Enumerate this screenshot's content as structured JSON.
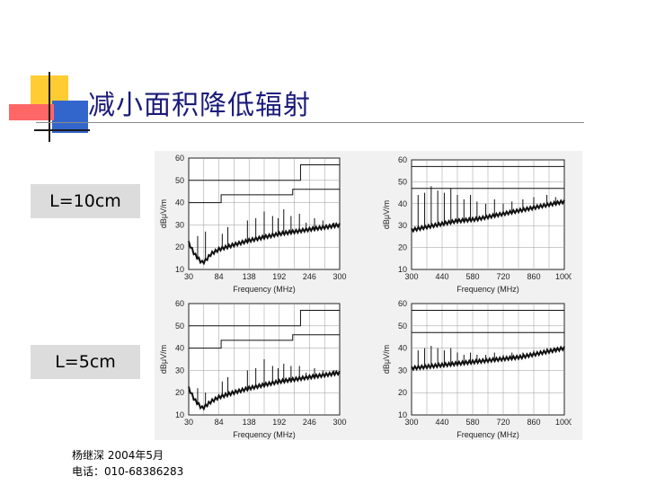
{
  "slide": {
    "title": "减小面积降低辐射",
    "labels": [
      "L=10cm",
      "L=5cm"
    ],
    "footer_line1": "杨继深  2004年5月",
    "footer_line2": "电话：010-68386283"
  },
  "colors": {
    "title": "#1a1a7a",
    "deco_yellow": "#ffcc33",
    "deco_blue": "#3366cc",
    "deco_red": "#ff6666",
    "label_bg": "#dcdcdc"
  },
  "chart_data": [
    {
      "type": "line",
      "position": "top-left",
      "xlabel": "Frequency (MHz)",
      "ylabel": "dBμV/m",
      "xticks": [
        "30",
        "84",
        "138",
        "192",
        "246",
        "300"
      ],
      "yticks": [
        "10",
        "20",
        "30",
        "40",
        "50",
        "60"
      ],
      "xlim": [
        30,
        300
      ],
      "ylim": [
        10,
        60
      ],
      "limit_lines": [
        {
          "x": [
            30,
            88,
            88,
            216,
            216,
            300
          ],
          "y": [
            40,
            40,
            43.5,
            43.5,
            46,
            46
          ]
        },
        {
          "x": [
            30,
            230,
            230,
            300
          ],
          "y": [
            50,
            50,
            57,
            57
          ]
        }
      ],
      "noise_floor": {
        "x": [
          30,
          40,
          50,
          55,
          60,
          70,
          84,
          110,
          138,
          165,
          192,
          220,
          246,
          275,
          300
        ],
        "y": [
          22,
          17,
          14,
          13,
          14,
          17,
          19,
          21,
          23,
          24.5,
          26,
          27,
          28,
          29,
          30
        ]
      },
      "spikes": [
        {
          "x": 46,
          "y": 25
        },
        {
          "x": 60,
          "y": 27
        },
        {
          "x": 90,
          "y": 26
        },
        {
          "x": 100,
          "y": 29
        },
        {
          "x": 135,
          "y": 32
        },
        {
          "x": 150,
          "y": 33
        },
        {
          "x": 165,
          "y": 36
        },
        {
          "x": 180,
          "y": 34
        },
        {
          "x": 190,
          "y": 33
        },
        {
          "x": 200,
          "y": 37
        },
        {
          "x": 213,
          "y": 34
        },
        {
          "x": 228,
          "y": 35
        },
        {
          "x": 240,
          "y": 31
        },
        {
          "x": 255,
          "y": 33
        },
        {
          "x": 270,
          "y": 32
        },
        {
          "x": 290,
          "y": 31
        }
      ]
    },
    {
      "type": "line",
      "position": "top-right",
      "xlabel": "Frequency (MHz)",
      "ylabel": "dBμV/m",
      "xticks": [
        "300",
        "440",
        "580",
        "720",
        "860",
        "1000"
      ],
      "yticks": [
        "10",
        "20",
        "30",
        "40",
        "50",
        "60"
      ],
      "xlim": [
        300,
        1000
      ],
      "ylim": [
        10,
        60
      ],
      "limit_lines": [
        {
          "x": [
            300,
            1000
          ],
          "y": [
            47,
            47
          ]
        },
        {
          "x": [
            300,
            1000
          ],
          "y": [
            57,
            57
          ]
        }
      ],
      "noise_floor": {
        "x": [
          300,
          400,
          500,
          600,
          700,
          800,
          900,
          1000
        ],
        "y": [
          28,
          30,
          32,
          33,
          35,
          37,
          39,
          41
        ]
      },
      "spikes": [
        {
          "x": 330,
          "y": 44
        },
        {
          "x": 360,
          "y": 45
        },
        {
          "x": 390,
          "y": 48
        },
        {
          "x": 420,
          "y": 46
        },
        {
          "x": 450,
          "y": 45
        },
        {
          "x": 480,
          "y": 47
        },
        {
          "x": 510,
          "y": 44
        },
        {
          "x": 540,
          "y": 42
        },
        {
          "x": 570,
          "y": 44
        },
        {
          "x": 600,
          "y": 41
        },
        {
          "x": 640,
          "y": 40
        },
        {
          "x": 680,
          "y": 42
        },
        {
          "x": 720,
          "y": 40
        },
        {
          "x": 760,
          "y": 41
        },
        {
          "x": 810,
          "y": 42
        },
        {
          "x": 860,
          "y": 43
        },
        {
          "x": 920,
          "y": 44
        },
        {
          "x": 960,
          "y": 43
        }
      ]
    },
    {
      "type": "line",
      "position": "bottom-left",
      "xlabel": "Frequency (MHz)",
      "ylabel": "dBμV/m",
      "xticks": [
        "30",
        "84",
        "138",
        "192",
        "246",
        "300"
      ],
      "yticks": [
        "10",
        "20",
        "30",
        "40",
        "50",
        "60"
      ],
      "xlim": [
        30,
        300
      ],
      "ylim": [
        10,
        60
      ],
      "limit_lines": [
        {
          "x": [
            30,
            88,
            88,
            216,
            216,
            300
          ],
          "y": [
            40,
            40,
            43.5,
            43.5,
            46,
            46
          ]
        },
        {
          "x": [
            30,
            230,
            230,
            300
          ],
          "y": [
            50,
            50,
            57,
            57
          ]
        }
      ],
      "noise_floor": {
        "x": [
          30,
          40,
          50,
          55,
          60,
          70,
          84,
          110,
          138,
          165,
          192,
          220,
          246,
          275,
          300
        ],
        "y": [
          22,
          17,
          14,
          13,
          14,
          16,
          18,
          20,
          22,
          23.5,
          25,
          26,
          27,
          28,
          29
        ]
      },
      "spikes": [
        {
          "x": 46,
          "y": 22
        },
        {
          "x": 60,
          "y": 20
        },
        {
          "x": 90,
          "y": 25
        },
        {
          "x": 100,
          "y": 27
        },
        {
          "x": 135,
          "y": 30
        },
        {
          "x": 150,
          "y": 31
        },
        {
          "x": 165,
          "y": 35
        },
        {
          "x": 180,
          "y": 32
        },
        {
          "x": 190,
          "y": 31
        },
        {
          "x": 200,
          "y": 33
        },
        {
          "x": 213,
          "y": 32
        },
        {
          "x": 228,
          "y": 32
        },
        {
          "x": 240,
          "y": 29
        },
        {
          "x": 255,
          "y": 31
        },
        {
          "x": 270,
          "y": 30
        },
        {
          "x": 290,
          "y": 30
        }
      ]
    },
    {
      "type": "line",
      "position": "bottom-right",
      "xlabel": "Frequency (MHz)",
      "ylabel": "dBμV/m",
      "xticks": [
        "300",
        "440",
        "580",
        "720",
        "860",
        "1000"
      ],
      "yticks": [
        "10",
        "20",
        "30",
        "40",
        "50",
        "60"
      ],
      "xlim": [
        300,
        1000
      ],
      "ylim": [
        10,
        60
      ],
      "limit_lines": [
        {
          "x": [
            300,
            1000
          ],
          "y": [
            47,
            47
          ]
        },
        {
          "x": [
            300,
            1000
          ],
          "y": [
            57,
            57
          ]
        }
      ],
      "noise_floor": {
        "x": [
          300,
          400,
          500,
          600,
          700,
          800,
          900,
          1000
        ],
        "y": [
          31,
          32,
          33,
          34,
          35,
          36,
          38,
          40
        ]
      },
      "spikes": [
        {
          "x": 330,
          "y": 39
        },
        {
          "x": 360,
          "y": 40
        },
        {
          "x": 390,
          "y": 41
        },
        {
          "x": 420,
          "y": 40
        },
        {
          "x": 450,
          "y": 39
        },
        {
          "x": 480,
          "y": 40
        },
        {
          "x": 510,
          "y": 38
        },
        {
          "x": 540,
          "y": 37
        },
        {
          "x": 570,
          "y": 38
        },
        {
          "x": 600,
          "y": 37
        },
        {
          "x": 640,
          "y": 37
        },
        {
          "x": 680,
          "y": 38
        },
        {
          "x": 720,
          "y": 37
        },
        {
          "x": 760,
          "y": 38
        },
        {
          "x": 810,
          "y": 38
        },
        {
          "x": 860,
          "y": 39
        },
        {
          "x": 920,
          "y": 40
        },
        {
          "x": 960,
          "y": 40
        }
      ]
    }
  ]
}
